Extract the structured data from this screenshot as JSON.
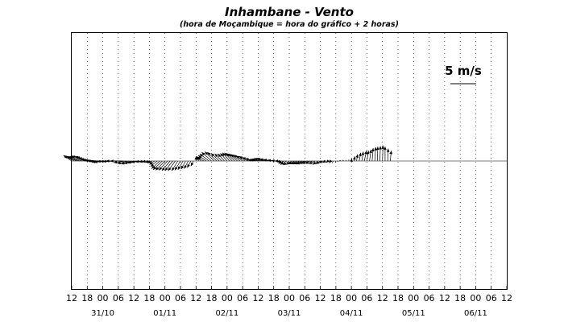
{
  "chart_data": {
    "type": "quiver",
    "title": "Inhambane - Vento",
    "subtitle": "(hora de Moçambique = hora do gráfico + 2 horas)",
    "scale_label": "5 m/s",
    "scale_value_ms": 5,
    "x_tick_labels": [
      "12",
      "18",
      "00",
      "06",
      "12",
      "18",
      "00",
      "06",
      "12",
      "18",
      "00",
      "06",
      "12",
      "18",
      "00",
      "06",
      "12",
      "18",
      "00",
      "06",
      "12",
      "18",
      "00",
      "06",
      "12",
      "18",
      "00",
      "06",
      "12"
    ],
    "date_labels": [
      "31/10",
      "01/11",
      "02/11",
      "03/11",
      "04/11",
      "05/11",
      "06/11"
    ],
    "x_hours_range": [
      0,
      168
    ],
    "vectors": [
      {
        "t": 0,
        "u": -1.6,
        "v": 1.1
      },
      {
        "t": 1,
        "u": -1.9,
        "v": 1.0
      },
      {
        "t": 2,
        "u": -2.1,
        "v": 0.9
      },
      {
        "t": 3,
        "u": -2.3,
        "v": 0.8
      },
      {
        "t": 4,
        "u": -2.4,
        "v": 0.9
      },
      {
        "t": 5,
        "u": -2.5,
        "v": 1.0
      },
      {
        "t": 6,
        "u": -2.4,
        "v": 0.9
      },
      {
        "t": 7,
        "u": -2.6,
        "v": 0.8
      },
      {
        "t": 8,
        "u": -2.7,
        "v": 0.6
      },
      {
        "t": 9,
        "u": -2.8,
        "v": 0.4
      },
      {
        "t": 10,
        "u": -2.9,
        "v": 0.2
      },
      {
        "t": 11,
        "u": -3.0,
        "v": 0.1
      },
      {
        "t": 12,
        "u": -3.0,
        "v": 0.0
      },
      {
        "t": 13,
        "u": -3.0,
        "v": -0.1
      },
      {
        "t": 14,
        "u": -3.1,
        "v": -0.2
      },
      {
        "t": 15,
        "u": -3.2,
        "v": -0.2
      },
      {
        "t": 16,
        "u": -3.1,
        "v": -0.1
      },
      {
        "t": 17,
        "u": -3.0,
        "v": -0.1
      },
      {
        "t": 18,
        "u": -3.0,
        "v": -0.1
      },
      {
        "t": 19,
        "u": -2.9,
        "v": 0.0
      },
      {
        "t": 20,
        "u": -2.6,
        "v": 0.0
      },
      {
        "t": 21,
        "u": -2.4,
        "v": -0.3
      },
      {
        "t": 22,
        "u": -2.2,
        "v": -0.5
      },
      {
        "t": 23,
        "u": -2.0,
        "v": -0.6
      },
      {
        "t": 24,
        "u": -1.9,
        "v": -0.5
      },
      {
        "t": 25,
        "u": -1.7,
        "v": -0.4
      },
      {
        "t": 26,
        "u": -1.5,
        "v": -0.3
      },
      {
        "t": 27,
        "u": -1.2,
        "v": -0.2
      },
      {
        "t": 28,
        "u": -1.0,
        "v": -0.2
      },
      {
        "t": 29,
        "u": -0.9,
        "v": -0.2
      },
      {
        "t": 30,
        "u": -0.8,
        "v": -0.3
      },
      {
        "t": 31,
        "u": -0.9,
        "v": -0.4
      },
      {
        "t": 32,
        "u": -1.0,
        "v": -0.7
      },
      {
        "t": 33,
        "u": -1.3,
        "v": -1.1
      },
      {
        "t": 34,
        "u": -1.6,
        "v": -1.5
      },
      {
        "t": 35,
        "u": -1.8,
        "v": -1.7
      },
      {
        "t": 36,
        "u": -1.8,
        "v": -1.8
      },
      {
        "t": 37,
        "u": -1.7,
        "v": -1.8
      },
      {
        "t": 38,
        "u": -1.6,
        "v": -1.9
      },
      {
        "t": 39,
        "u": -1.5,
        "v": -1.9
      },
      {
        "t": 40,
        "u": -1.4,
        "v": -1.9
      },
      {
        "t": 41,
        "u": -1.2,
        "v": -1.9
      },
      {
        "t": 42,
        "u": -1.1,
        "v": -1.8
      },
      {
        "t": 43,
        "u": -1.0,
        "v": -1.7
      },
      {
        "t": 44,
        "u": -0.9,
        "v": -1.6
      },
      {
        "t": 45,
        "u": -0.8,
        "v": -1.5
      },
      {
        "t": 46,
        "u": -0.7,
        "v": -1.3
      },
      {
        "t": 47,
        "u": -0.5,
        "v": -1.0
      },
      {
        "t": 48,
        "u": 0.0,
        "v": 0.9
      },
      {
        "t": 49,
        "u": -0.4,
        "v": 0.9
      },
      {
        "t": 50,
        "u": -0.8,
        "v": 0.8
      },
      {
        "t": 51,
        "u": -1.2,
        "v": 0.8
      },
      {
        "t": 52,
        "u": -1.6,
        "v": 1.1
      },
      {
        "t": 53,
        "u": -1.8,
        "v": 1.4
      },
      {
        "t": 54,
        "u": -1.9,
        "v": 1.7
      },
      {
        "t": 55,
        "u": -1.8,
        "v": 1.8
      },
      {
        "t": 56,
        "u": -1.8,
        "v": 1.7
      },
      {
        "t": 57,
        "u": -1.6,
        "v": 1.5
      },
      {
        "t": 58,
        "u": -1.4,
        "v": 1.4
      },
      {
        "t": 59,
        "u": -1.3,
        "v": 1.4
      },
      {
        "t": 60,
        "u": -1.3,
        "v": 1.5
      },
      {
        "t": 61,
        "u": -1.4,
        "v": 1.6
      },
      {
        "t": 62,
        "u": -1.5,
        "v": 1.6
      },
      {
        "t": 63,
        "u": -1.6,
        "v": 1.5
      },
      {
        "t": 64,
        "u": -1.7,
        "v": 1.4
      },
      {
        "t": 65,
        "u": -1.8,
        "v": 1.3
      },
      {
        "t": 66,
        "u": -1.8,
        "v": 1.2
      },
      {
        "t": 67,
        "u": -1.8,
        "v": 1.0
      },
      {
        "t": 68,
        "u": -1.7,
        "v": 0.9
      },
      {
        "t": 69,
        "u": -1.6,
        "v": 0.7
      },
      {
        "t": 70,
        "u": -1.5,
        "v": 0.5
      },
      {
        "t": 71,
        "u": -1.4,
        "v": 0.3
      },
      {
        "t": 72,
        "u": -1.5,
        "v": 0.3
      },
      {
        "t": 73,
        "u": -1.7,
        "v": 0.4
      },
      {
        "t": 74,
        "u": -1.8,
        "v": 0.5
      },
      {
        "t": 75,
        "u": -1.8,
        "v": 0.5
      },
      {
        "t": 76,
        "u": -1.7,
        "v": 0.4
      },
      {
        "t": 77,
        "u": -1.5,
        "v": 0.3
      },
      {
        "t": 78,
        "u": -1.2,
        "v": 0.2
      },
      {
        "t": 79,
        "u": -1.0,
        "v": 0.1
      },
      {
        "t": 80,
        "u": -0.8,
        "v": 0.0
      },
      {
        "t": 81,
        "u": -0.9,
        "v": -0.2
      },
      {
        "t": 82,
        "u": -1.1,
        "v": -0.5
      },
      {
        "t": 83,
        "u": -1.2,
        "v": -0.7
      },
      {
        "t": 84,
        "u": -1.2,
        "v": -0.8
      },
      {
        "t": 85,
        "u": -1.1,
        "v": -0.7
      },
      {
        "t": 86,
        "u": -1.2,
        "v": -0.6
      },
      {
        "t": 87,
        "u": -1.4,
        "v": -0.6
      },
      {
        "t": 88,
        "u": -1.5,
        "v": -0.6
      },
      {
        "t": 89,
        "u": -1.6,
        "v": -0.6
      },
      {
        "t": 90,
        "u": -1.7,
        "v": -0.6
      },
      {
        "t": 91,
        "u": -1.7,
        "v": -0.5
      },
      {
        "t": 92,
        "u": -1.6,
        "v": -0.5
      },
      {
        "t": 93,
        "u": -1.4,
        "v": -0.5
      },
      {
        "t": 94,
        "u": -1.2,
        "v": -0.6
      },
      {
        "t": 95,
        "u": -1.0,
        "v": -0.7
      },
      {
        "t": 96,
        "u": -0.9,
        "v": -0.6
      },
      {
        "t": 97,
        "u": -0.8,
        "v": -0.4
      },
      {
        "t": 98,
        "u": -0.6,
        "v": -0.3
      },
      {
        "t": 99,
        "u": -0.4,
        "v": -0.3
      },
      {
        "t": 100,
        "u": -0.3,
        "v": -0.4
      },
      {
        "t": 101,
        "u": -0.2,
        "v": -0.4
      },
      {
        "t": 102,
        "u": -0.1,
        "v": -0.3
      },
      {
        "t": 103,
        "u": -0.2,
        "v": -0.1
      },
      {
        "t": 104,
        "u": -0.3,
        "v": 0.1
      },
      {
        "t": 105,
        "u": -0.2,
        "v": 0.2
      },
      {
        "t": 106,
        "u": -0.1,
        "v": 0.2
      },
      {
        "t": 107,
        "u": 0.0,
        "v": 0.3
      },
      {
        "t": 108,
        "u": 0.1,
        "v": 0.5
      },
      {
        "t": 109,
        "u": 0.2,
        "v": 0.9
      },
      {
        "t": 110,
        "u": 0.2,
        "v": 1.3
      },
      {
        "t": 111,
        "u": 0.3,
        "v": 1.6
      },
      {
        "t": 112,
        "u": 0.3,
        "v": 1.8
      },
      {
        "t": 113,
        "u": 0.4,
        "v": 2.0
      },
      {
        "t": 114,
        "u": 0.3,
        "v": 2.0
      },
      {
        "t": 115,
        "u": 0.3,
        "v": 2.2
      },
      {
        "t": 116,
        "u": 0.2,
        "v": 2.5
      },
      {
        "t": 117,
        "u": 0.2,
        "v": 2.7
      },
      {
        "t": 118,
        "u": 0.1,
        "v": 2.8
      },
      {
        "t": 119,
        "u": 0.1,
        "v": 2.9
      },
      {
        "t": 120,
        "u": 0.1,
        "v": 3.0
      },
      {
        "t": 121,
        "u": 0.0,
        "v": 2.8
      },
      {
        "t": 122,
        "u": 0.1,
        "v": 2.4
      },
      {
        "t": 123,
        "u": 0.2,
        "v": 2.0
      }
    ]
  }
}
